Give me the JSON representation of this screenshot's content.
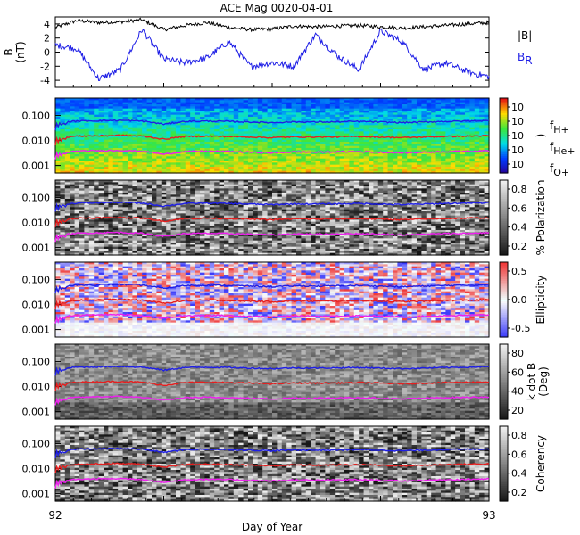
{
  "title": "ACE Mag 0020-04-01",
  "xlabel": "Day of Year",
  "x_ticks": [
    "92",
    "93"
  ],
  "legend_mag": {
    "total": "|B|",
    "radial_main": "B",
    "radial_sub": "R"
  },
  "legend_freq": [
    {
      "main": "f",
      "sub": "H+",
      "color": "#1e1ee6"
    },
    {
      "main": "f",
      "sub": "He+",
      "color": "#e61e1e"
    },
    {
      "main": "f",
      "sub": "O+",
      "color": "#ee1eee"
    }
  ],
  "colors": {
    "total": "#000000",
    "radial": "#1e1ee6",
    "fH": "#1e1ee6",
    "fHe": "#e61e1e",
    "fO": "#ee1eee"
  },
  "chart_data": [
    {
      "type": "line",
      "panel": "magnetic-field",
      "xlabel": "Day of Year",
      "ylabel_main": "B",
      "ylabel_unit": "(nT)",
      "x": [
        92.0,
        92.05,
        92.1,
        92.15,
        92.2,
        92.25,
        92.3,
        92.35,
        92.4,
        92.45,
        92.5,
        92.55,
        92.6,
        92.65,
        92.7,
        92.75,
        92.8,
        92.85,
        92.9,
        92.95,
        93.0
      ],
      "xlim": [
        92,
        93
      ],
      "ylim": [
        -5,
        5
      ],
      "y_ticks": [
        "4",
        "2",
        "0",
        "-2",
        "-4"
      ],
      "series": [
        {
          "name": "|B|",
          "values": [
            3.5,
            4.5,
            4.2,
            4.3,
            4.6,
            3.2,
            3.8,
            4.2,
            3.5,
            3.2,
            3.3,
            3.7,
            3.6,
            3.7,
            3.8,
            3.6,
            3.4,
            3.6,
            3.8,
            4.0,
            4.2
          ]
        },
        {
          "name": "B_R",
          "values": [
            1.0,
            0.5,
            -3.8,
            -2.5,
            3.2,
            -1.0,
            -1.5,
            -0.8,
            1.5,
            -2.0,
            -1.5,
            -2.0,
            2.5,
            -0.5,
            -2.5,
            3.0,
            1.5,
            -2.5,
            -1.5,
            -2.8,
            -3.5
          ]
        }
      ]
    },
    {
      "type": "heatmap",
      "panel": "power",
      "color_scale": "rainbow",
      "ylim": [
        0.0005,
        0.5
      ],
      "y_scale": "log",
      "y_ticks": [
        "0.100",
        "0.010",
        "0.001"
      ],
      "colorbar_ticks": [
        "10",
        "10",
        "10",
        "10",
        "10"
      ],
      "colorbar_label": ")"
    },
    {
      "type": "heatmap",
      "panel": "polarization",
      "color_scale": "gray",
      "ylim": [
        0.0005,
        0.5
      ],
      "y_scale": "log",
      "y_ticks": [
        "0.100",
        "0.010",
        "0.001"
      ],
      "colorbar_ticks": [
        "0.8",
        "0.6",
        "0.4",
        "0.2"
      ],
      "colorbar_label": "% Polarization"
    },
    {
      "type": "heatmap",
      "panel": "ellipticity",
      "color_scale": "diverging",
      "ylim": [
        0.0005,
        0.5
      ],
      "y_scale": "log",
      "y_ticks": [
        "0.100",
        "0.010",
        "0.001"
      ],
      "colorbar_ticks": [
        "0.5",
        "0.0",
        "-0.5"
      ],
      "colorbar_label": "Ellipticity"
    },
    {
      "type": "heatmap",
      "panel": "wave-normal-angle",
      "color_scale": "gray",
      "ylim": [
        0.0005,
        0.5
      ],
      "y_scale": "log",
      "y_ticks": [
        "0.100",
        "0.010",
        "0.001"
      ],
      "colorbar_ticks": [
        "80",
        "60",
        "40",
        "20"
      ],
      "colorbar_label_1": "k dot B",
      "colorbar_label_2": "(Deg)"
    },
    {
      "type": "heatmap",
      "panel": "coherency",
      "color_scale": "gray",
      "ylim": [
        0.0005,
        0.5
      ],
      "y_scale": "log",
      "y_ticks": [
        "0.100",
        "0.010",
        "0.001"
      ],
      "colorbar_ticks": [
        "0.8",
        "0.6",
        "0.4",
        "0.2"
      ],
      "colorbar_label": "Coherency"
    },
    {
      "type": "line",
      "panel": "gyrofrequencies",
      "x": [
        92.0,
        92.05,
        92.1,
        92.15,
        92.2,
        92.25,
        92.3,
        92.35,
        92.4,
        92.45,
        92.5,
        92.55,
        92.6,
        92.65,
        92.7,
        92.75,
        92.8,
        92.85,
        92.9,
        92.95,
        93.0
      ],
      "series": [
        {
          "name": "f_H+",
          "values": [
            0.05,
            0.06,
            0.062,
            0.064,
            0.06,
            0.045,
            0.058,
            0.06,
            0.058,
            0.055,
            0.052,
            0.056,
            0.055,
            0.056,
            0.058,
            0.055,
            0.052,
            0.055,
            0.058,
            0.06,
            0.062
          ]
        },
        {
          "name": "f_He+",
          "values": [
            0.0125,
            0.015,
            0.0155,
            0.016,
            0.015,
            0.0112,
            0.0145,
            0.015,
            0.0145,
            0.0138,
            0.013,
            0.014,
            0.0138,
            0.014,
            0.0145,
            0.0138,
            0.013,
            0.0138,
            0.0145,
            0.015,
            0.0155
          ]
        },
        {
          "name": "f_O+",
          "values": [
            0.0031,
            0.0037,
            0.0039,
            0.004,
            0.0037,
            0.0028,
            0.0036,
            0.0037,
            0.0036,
            0.0034,
            0.0032,
            0.0035,
            0.0034,
            0.0035,
            0.0036,
            0.0034,
            0.0032,
            0.0034,
            0.0036,
            0.0037,
            0.0039
          ]
        }
      ]
    }
  ]
}
